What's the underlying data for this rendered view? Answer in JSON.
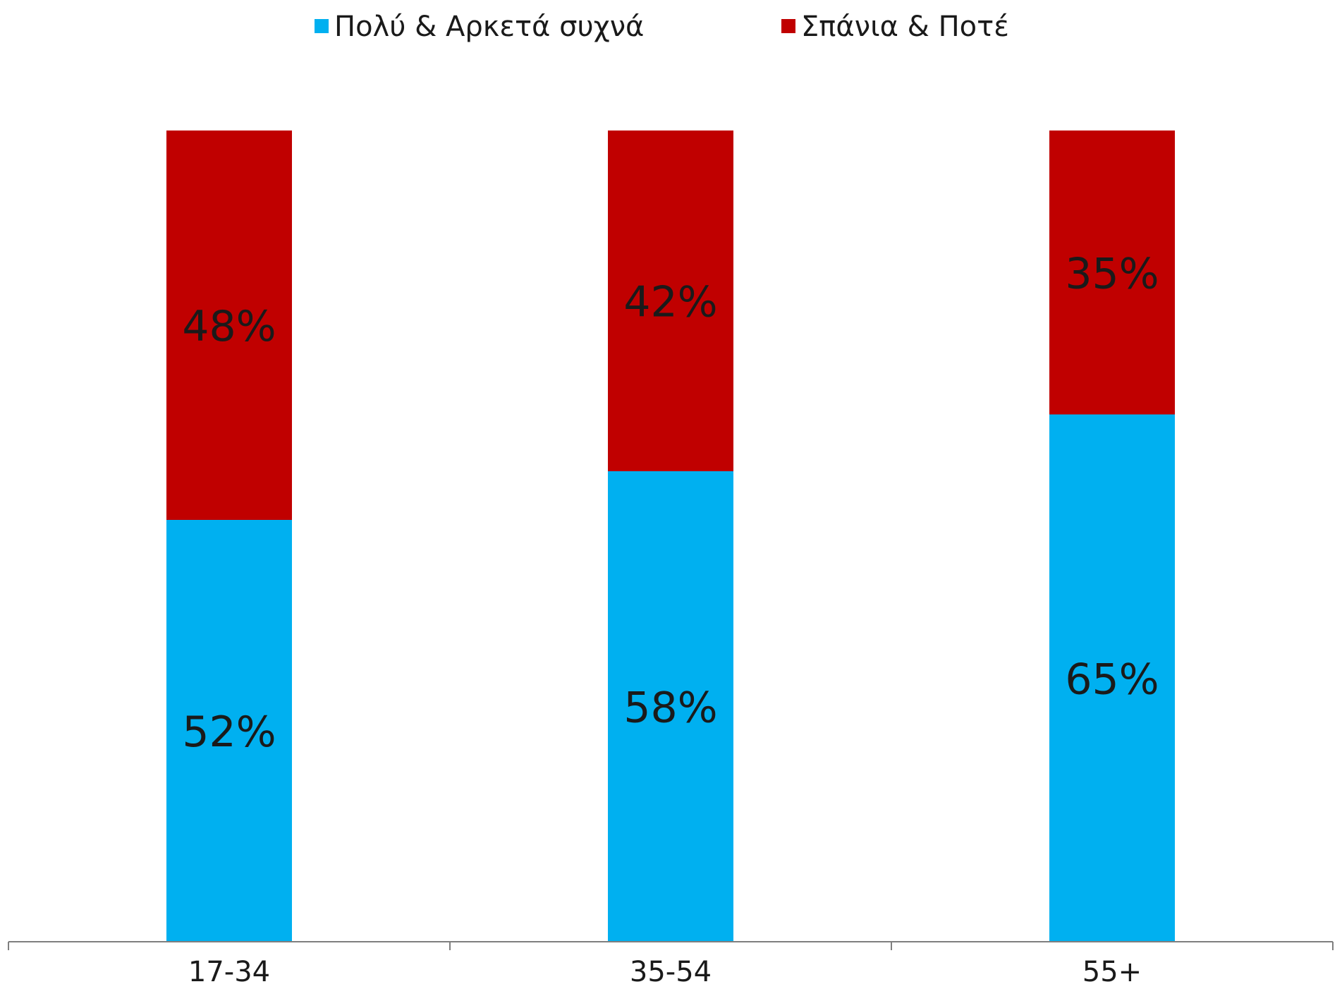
{
  "chart_data": {
    "type": "bar",
    "stacked": true,
    "percent_stacked": true,
    "title": "",
    "xlabel": "",
    "ylabel": "",
    "ylim": [
      0,
      100
    ],
    "grid": false,
    "legend": "top-center",
    "categories": [
      "17-34",
      "35-54",
      "55+"
    ],
    "series": [
      {
        "name": "Πολύ & Αρκετά συχνά",
        "color": "#00B0F0",
        "values": [
          52,
          58,
          65
        ],
        "labels": [
          "52%",
          "58%",
          "65%"
        ]
      },
      {
        "name": "Σπάνια & Ποτέ",
        "color": "#C00000",
        "values": [
          48,
          42,
          35
        ],
        "labels": [
          "48%",
          "42%",
          "35%"
        ]
      }
    ]
  }
}
